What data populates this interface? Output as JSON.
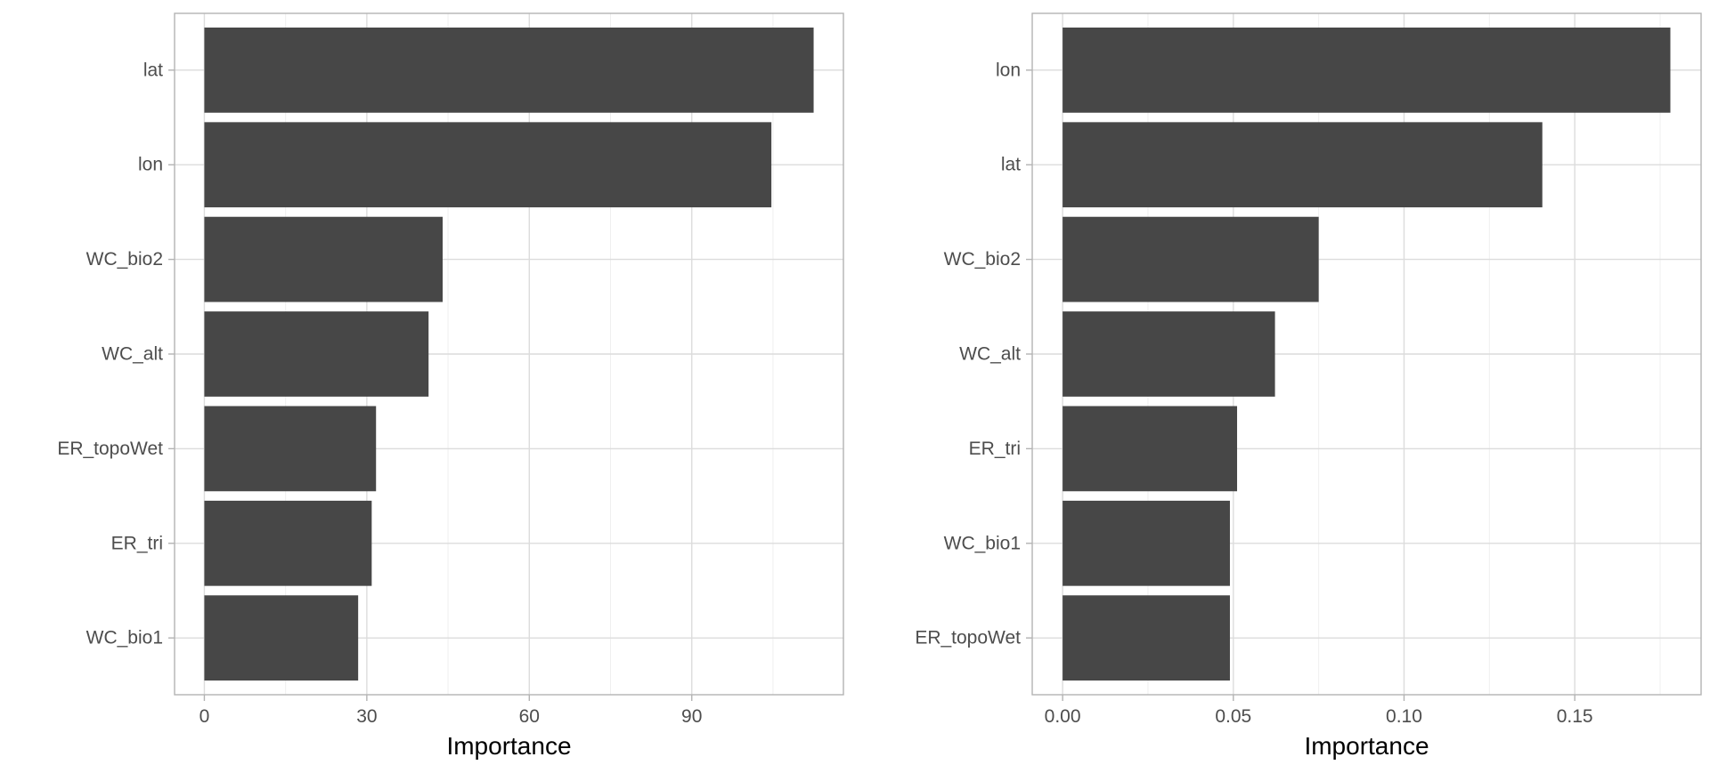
{
  "chart_data": [
    {
      "type": "bar",
      "orientation": "horizontal",
      "categories": [
        "lat",
        "lon",
        "WC_bio2",
        "WC_alt",
        "ER_topoWet",
        "ER_tri",
        "WC_bio1"
      ],
      "values": [
        112.5,
        104.7,
        44.0,
        41.4,
        31.7,
        30.9,
        28.4
      ],
      "xlabel": "Importance",
      "ylabel": "",
      "xlim": [
        -5.5,
        118.0
      ],
      "x_ticks": [
        0,
        30,
        60,
        90
      ],
      "x_tick_labels": [
        "0",
        "30",
        "60",
        "90"
      ],
      "x_minor_ticks": [
        15,
        45,
        75,
        105
      ],
      "grid": true,
      "bar_color": "#474747"
    },
    {
      "type": "bar",
      "orientation": "horizontal",
      "categories": [
        "lon",
        "lat",
        "WC_bio2",
        "WC_alt",
        "ER_tri",
        "WC_bio1",
        "ER_topoWet"
      ],
      "values": [
        0.178,
        0.1405,
        0.075,
        0.0622,
        0.0511,
        0.049,
        0.049
      ],
      "xlabel": "Importance",
      "ylabel": "",
      "xlim": [
        -0.0089,
        0.187
      ],
      "x_ticks": [
        0.0,
        0.05,
        0.1,
        0.15
      ],
      "x_tick_labels": [
        "0.00",
        "0.05",
        "0.10",
        "0.15"
      ],
      "x_minor_ticks": [
        0.025,
        0.075,
        0.125,
        0.175
      ],
      "grid": true,
      "bar_color": "#474747"
    }
  ],
  "colors": {
    "bar": "#474747",
    "panel_border": "#b3b3b3",
    "grid_major": "#dcdcdc",
    "grid_minor": "#efefef",
    "tick_text": "#4d4d4d",
    "axis_title": "#000000"
  }
}
